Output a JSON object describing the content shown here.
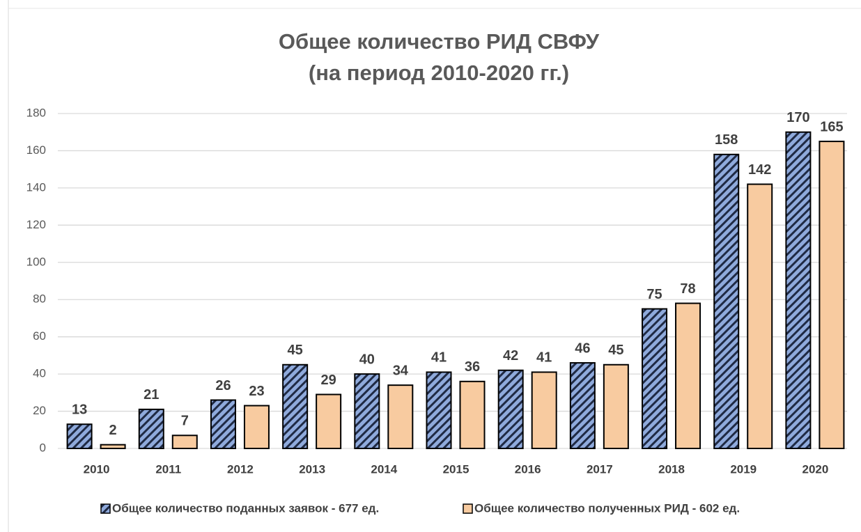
{
  "chart_data": {
    "type": "bar",
    "title": "Общее количество РИД СВФУ",
    "subtitle": "(на период 2010-2020 гг.)",
    "categories": [
      "2010",
      "2011",
      "2012",
      "2013",
      "2014",
      "2015",
      "2016",
      "2017",
      "2018",
      "2019",
      "2020"
    ],
    "series": [
      {
        "name": "Общее количество поданных заявок - 677 ед.",
        "color": "#8faadc",
        "hatch_color": "#1f2a44",
        "pattern": "hatch",
        "values": [
          13,
          21,
          26,
          45,
          40,
          41,
          42,
          46,
          75,
          158,
          170
        ]
      },
      {
        "name": "Общее количество полученных РИД - 602 ед.",
        "color": "#f8cba0",
        "values": [
          2,
          7,
          23,
          29,
          34,
          36,
          41,
          45,
          78,
          142,
          165
        ]
      }
    ],
    "ylim": [
      0,
      180
    ],
    "yticks": [
      0,
      20,
      40,
      60,
      80,
      100,
      120,
      140,
      160,
      180
    ],
    "grid": true,
    "legend": "bottom",
    "data_labels": true
  }
}
